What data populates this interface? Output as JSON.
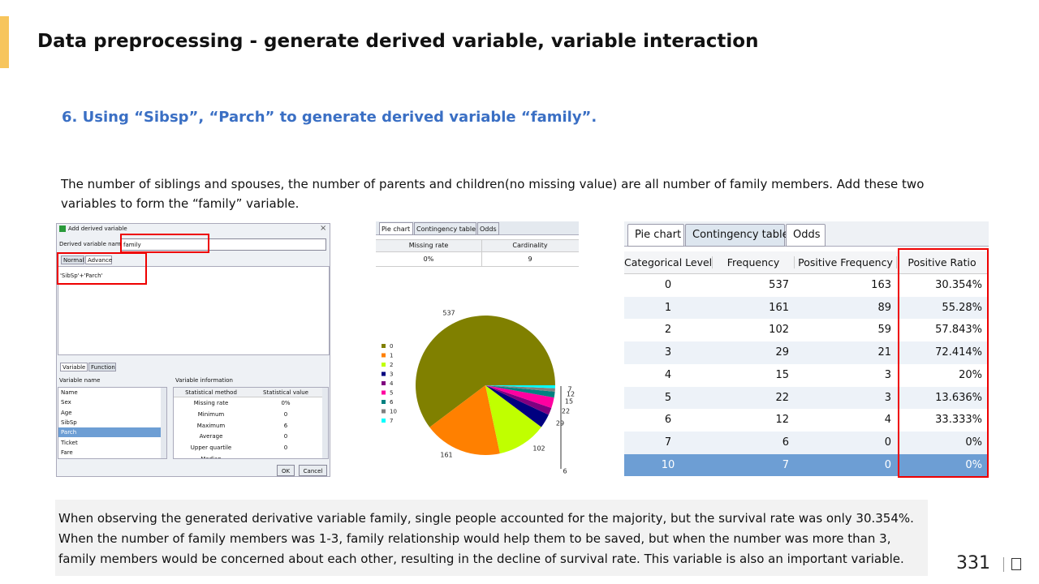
{
  "header": {
    "title": "Data preprocessing - generate derived variable, variable interaction",
    "page_number": "331"
  },
  "subtitle": "6. Using “Sibsp”, “Parch” to generate derived variable “family”.",
  "intro": [
    "The number of siblings and spouses, the number of parents and children(no missing value) are all number of family members. Add these two",
    "variables to form the “family” variable."
  ],
  "dialog": {
    "title": "Add derived variable",
    "name_label": "Derived variable name",
    "name_value": "family",
    "tabs": [
      "Normal",
      "Advance"
    ],
    "expression": "'SibSp'+'Parch'",
    "lower_tabs": [
      "Variable",
      "Function"
    ],
    "variable_list_header": "Variable name",
    "variables": [
      "Name",
      "Sex",
      "Age",
      "SibSp",
      "Parch",
      "Ticket",
      "Fare"
    ],
    "info_header": "Variable information",
    "info_columns": [
      "Statistical method",
      "Statistical value"
    ],
    "info_rows": [
      [
        "Missing rate",
        "0%"
      ],
      [
        "Minimum",
        "0"
      ],
      [
        "Maximum",
        "6"
      ],
      [
        "Average",
        "0"
      ],
      [
        "Upper quartile",
        "0"
      ],
      [
        "Median"
      ]
    ],
    "buttons": [
      "OK",
      "Cancel"
    ]
  },
  "panel": {
    "tabs": [
      "Pie chart",
      "Contingency table",
      "Odds"
    ],
    "summary_columns": [
      "Missing rate",
      "Cardinality"
    ],
    "summary_values": [
      "0%",
      "9"
    ]
  },
  "chart_data": {
    "type": "pie",
    "categories": [
      "0",
      "1",
      "2",
      "3",
      "4",
      "5",
      "6",
      "10",
      "7"
    ],
    "values": [
      537,
      161,
      102,
      29,
      15,
      22,
      12,
      7,
      6
    ],
    "colors": [
      "#808000",
      "#ff8000",
      "#c0ff00",
      "#000080",
      "#800080",
      "#ff00a0",
      "#008080",
      "#808080",
      "#00ffff"
    ]
  },
  "contingency": {
    "tabs": [
      "Pie chart",
      "Contingency table",
      "Odds"
    ],
    "columns": [
      "Categorical Level",
      "Frequency",
      "Positive Frequency",
      "Positive Ratio"
    ],
    "rows": [
      [
        "0",
        "537",
        "163",
        "30.354%"
      ],
      [
        "1",
        "161",
        "89",
        "55.28%"
      ],
      [
        "2",
        "102",
        "59",
        "57.843%"
      ],
      [
        "3",
        "29",
        "21",
        "72.414%"
      ],
      [
        "4",
        "15",
        "3",
        "20%"
      ],
      [
        "5",
        "22",
        "3",
        "13.636%"
      ],
      [
        "6",
        "12",
        "4",
        "33.333%"
      ],
      [
        "7",
        "6",
        "0",
        "0%"
      ],
      [
        "10",
        "7",
        "0",
        "0%"
      ]
    ]
  },
  "note": [
    "When observing the generated derivative variable family, single people accounted for the majority, but the survival rate was only 30.354%.",
    "When the number of family members was 1-3, family relationship would help them to be saved, but when the number was more than 3,",
    "family members would be concerned about each other, resulting in the decline of survival rate. This variable is also an important variable."
  ]
}
